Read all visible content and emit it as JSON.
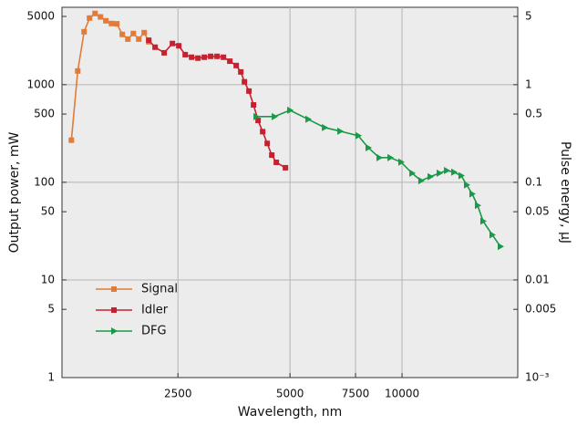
{
  "chart_data": {
    "type": "line",
    "x_label": "Wavelength, nm",
    "y_label": "Output power, mW",
    "y2_label": "Pulse energy, µJ",
    "xscale": "log",
    "yscale": "log",
    "y2scale": "log",
    "xlim": [
      1220,
      20460
    ],
    "ylim": [
      1,
      6200
    ],
    "y2lim": [
      0.001,
      6.2
    ],
    "xticks": [
      2500,
      5000,
      7500,
      10000
    ],
    "yticks": [
      1,
      5,
      10,
      50,
      100,
      500,
      1000,
      5000
    ],
    "y2ticks": [
      {
        "value": 0.001,
        "label": "10⁻³"
      },
      0.005,
      0.01,
      0.05,
      0.1,
      0.5,
      1,
      5
    ],
    "grid": true,
    "legend": "lower left",
    "series": [
      {
        "name": "Signal",
        "color": "#e07b39",
        "marker": "square",
        "x": [
          1293,
          1345,
          1399,
          1447,
          1497,
          1548,
          1601,
          1657,
          1713,
          1772,
          1834,
          1897,
          1962,
          2029,
          2087
        ],
        "values": [
          270,
          1380,
          3480,
          4810,
          5360,
          4940,
          4510,
          4230,
          4200,
          3270,
          2930,
          3340,
          2930,
          3410,
          2750
        ]
      },
      {
        "name": "Idler",
        "color": "#c8202f",
        "marker": "square",
        "x": [
          2087,
          2170,
          2296,
          2416,
          2513,
          2615,
          2720,
          2829,
          2943,
          3061,
          3185,
          3313,
          3446,
          3585,
          3688,
          3772,
          3879,
          3990,
          4104,
          4222,
          4343,
          4467,
          4594,
          4861
        ],
        "values": [
          2850,
          2420,
          2120,
          2640,
          2500,
          2030,
          1910,
          1870,
          1910,
          1950,
          1950,
          1910,
          1740,
          1570,
          1350,
          1070,
          860,
          620,
          430,
          330,
          250,
          190,
          160,
          141
        ]
      },
      {
        "name": "DFG",
        "color": "#1a9a48",
        "marker": "triangle-right",
        "x": [
          4057,
          4541,
          4998,
          5595,
          6193,
          6815,
          7627,
          8116,
          8685,
          9293,
          9940,
          10640,
          11250,
          11910,
          12600,
          13180,
          13790,
          14420,
          14920,
          15430,
          15960,
          16510,
          17470,
          18380
        ],
        "values": [
          471,
          471,
          547,
          442,
          364,
          334,
          300,
          226,
          179,
          179,
          161,
          124,
          104,
          114,
          124,
          132,
          127,
          117,
          94,
          76,
          58,
          40,
          29,
          22
        ]
      }
    ]
  }
}
